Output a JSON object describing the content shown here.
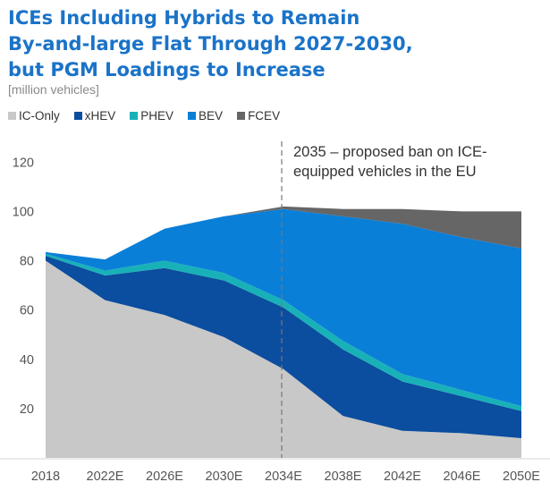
{
  "header": {
    "title_lines": [
      "ICEs Including Hybrids to Remain",
      "By-and-large Flat Through 2027-2030,",
      "but PGM Loadings to Increase"
    ],
    "unit": "[million vehicles]"
  },
  "colors": {
    "title": "#1a73c8",
    "IC-Only": "#c8c8c8",
    "xHEV": "#0b4d9e",
    "PHEV": "#18b1b8",
    "BEV": "#0a7fd8",
    "FCEV": "#666666"
  },
  "chart_data": {
    "type": "area",
    "stacked": true,
    "title": "ICEs Including Hybrids to Remain By-and-large Flat Through 2027-2030, but PGM Loadings to Increase",
    "ylabel": "[million vehicles]",
    "xlabel": "",
    "x": [
      2018,
      2022,
      2026,
      2030,
      2034,
      2038,
      2042,
      2046,
      2050
    ],
    "categories": [
      "2018",
      "2022E",
      "2026E",
      "2030E",
      "2034E",
      "2038E",
      "2042E",
      "2046E",
      "2050E"
    ],
    "yticks": [
      20,
      40,
      60,
      80,
      100,
      120
    ],
    "ylim": [
      0,
      127
    ],
    "series": [
      {
        "name": "IC-Only",
        "values": [
          80,
          64,
          58,
          49,
          36,
          17,
          11,
          10,
          8
        ]
      },
      {
        "name": "xHEV",
        "values": [
          2,
          10,
          19,
          23,
          25,
          27,
          20,
          15,
          11
        ]
      },
      {
        "name": "PHEV",
        "values": [
          0.8,
          2,
          3,
          3,
          3,
          3.5,
          3,
          2.5,
          2
        ]
      },
      {
        "name": "BEV",
        "values": [
          0.7,
          4.5,
          13,
          23,
          37,
          50.5,
          61,
          62,
          64
        ]
      },
      {
        "name": "FCEV",
        "values": [
          0,
          0,
          0,
          0,
          1,
          3,
          6,
          10.5,
          15
        ]
      }
    ],
    "annotation": {
      "x": 2034,
      "lines": [
        "2035 – proposed ban on ICE-",
        "equipped vehicles in the EU"
      ]
    },
    "grid": false,
    "legend": "top-left"
  }
}
